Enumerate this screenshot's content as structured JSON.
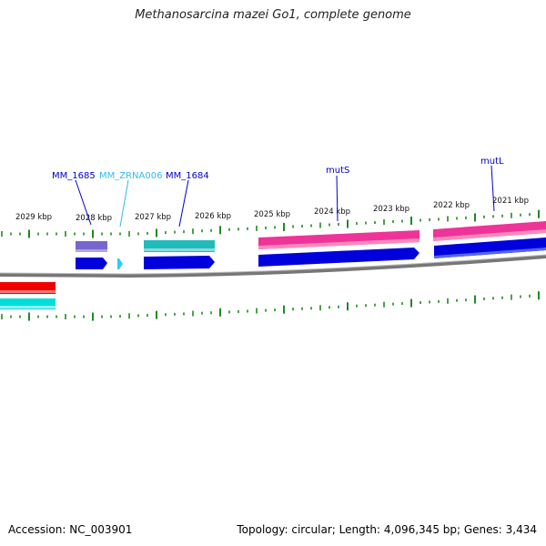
{
  "title": "Methanosarcina mazei Go1, complete genome",
  "kbp_labels": [
    "2029 kbp",
    "2028 kbp",
    "2027 kbp",
    "2026 kbp",
    "2025 kbp",
    "2024 kbp",
    "2023 kbp",
    "2022 kbp",
    "2021 kbp"
  ],
  "gene_labels": [
    {
      "text": "MM_1685",
      "color": "#0000cc"
    },
    {
      "text": "MM_ZRNA006",
      "color": "#33bbee"
    },
    {
      "text": "MM_1684",
      "color": "#0000cc"
    },
    {
      "text": "mutS",
      "color": "#0000cc"
    },
    {
      "text": "mutL",
      "color": "#0000cc"
    }
  ],
  "colors": {
    "tick": "#228822",
    "backbone": "#777777",
    "cds_forward": "#0000dd",
    "rna": "#33ccee",
    "cog_purple": "#7766cc",
    "cog_teal": "#22bbbb",
    "cog_pink": "#ee3399",
    "cog_red": "#ee0000",
    "cog_cyan": "#00dddd"
  },
  "footer": {
    "accession": "Accession: NC_003901",
    "stats": "Topology: circular; Length: 4,096,345 bp; Genes: 3,434"
  }
}
